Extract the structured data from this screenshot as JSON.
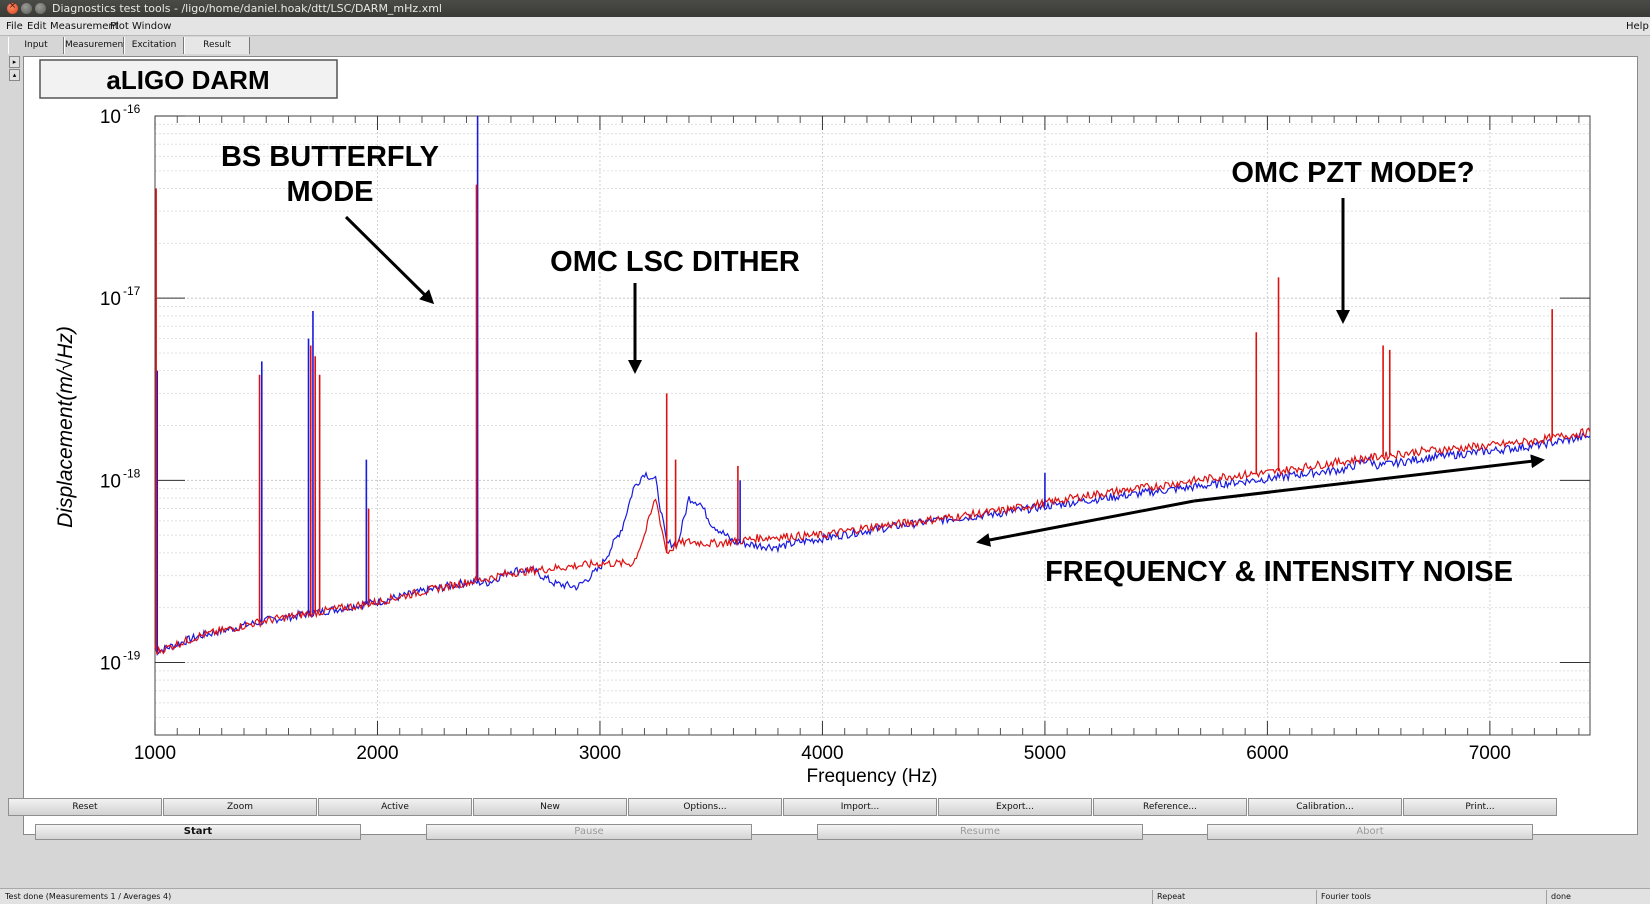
{
  "window": {
    "title": "Diagnostics test tools - /ligo/home/daniel.hoak/dtt/LSC/DARM_mHz.xml"
  },
  "menubar": {
    "items": [
      "File",
      "Edit",
      "Measurement",
      "Plot",
      "Window"
    ],
    "help": "Help"
  },
  "tabs": [
    "Input",
    "Measurement",
    "Excitation",
    "Result"
  ],
  "active_tab": "Result",
  "plot_title_box": "aLIGO DARM",
  "annotations": {
    "bs_butterfly_line1": "BS BUTTERFLY",
    "bs_butterfly_line2": "MODE",
    "omc_lsc_dither": "OMC LSC DITHER",
    "omc_pzt_mode": "OMC PZT MODE?",
    "freq_intensity": "FREQUENCY & INTENSITY NOISE"
  },
  "chart_data": {
    "type": "line",
    "title": "aLIGO DARM",
    "xlabel": "Frequency (Hz)",
    "ylabel": "Displacement(m/√Hz)",
    "xlim": [
      1000,
      7450
    ],
    "ylim": [
      4e-20,
      1e-16
    ],
    "yscale": "log",
    "xticks": [
      "1000",
      "2000",
      "3000",
      "4000",
      "5000",
      "6000",
      "7000"
    ],
    "yticks": [
      {
        "base": "10",
        "exp": "-16"
      },
      {
        "base": "10",
        "exp": "-17"
      },
      {
        "base": "10",
        "exp": "-18"
      },
      {
        "base": "10",
        "exp": "-19"
      }
    ],
    "grid": true,
    "series": [
      {
        "color": "#1a1adf",
        "x": [
          1000,
          1010,
          1200,
          1500,
          1800,
          2000,
          2200,
          2400,
          2500,
          2600,
          2700,
          2800,
          2900,
          3000,
          3100,
          3150,
          3200,
          3250,
          3300,
          3350,
          3400,
          3450,
          3500,
          3600,
          3700,
          3800,
          3900,
          4000,
          4200,
          4500,
          4800,
          5000,
          5200,
          5500,
          5800,
          6000,
          6200,
          6350,
          6450,
          6500,
          6700,
          7000,
          7200,
          7450
        ],
        "y": [
          1.2e-19,
          1.15e-19,
          1.4e-19,
          1.7e-19,
          1.95e-19,
          2.15e-19,
          2.45e-19,
          2.75e-19,
          2.75e-19,
          3.2e-19,
          3.2e-19,
          2.7e-19,
          2.6e-19,
          3.3e-19,
          5.5e-19,
          9e-19,
          1.1e-18,
          1e-18,
          4.5e-19,
          4.5e-19,
          8e-19,
          7.5e-19,
          5.8e-19,
          4.6e-19,
          4.4e-19,
          4.3e-19,
          4.6e-19,
          4.8e-19,
          5.3e-19,
          6e-19,
          6.6e-19,
          7.2e-19,
          7.8e-19,
          8.7e-19,
          9.6e-19,
          1.02e-18,
          1.1e-18,
          1.15e-18,
          1.3e-18,
          1.2e-18,
          1.32e-18,
          1.45e-18,
          1.55e-18,
          1.75e-18
        ]
      },
      {
        "color": "#dd1111",
        "x": [
          1000,
          1010,
          1200,
          1500,
          1800,
          2000,
          2200,
          2400,
          2500,
          2600,
          2800,
          3000,
          3150,
          3200,
          3250,
          3300,
          3350,
          3400,
          3500,
          3600,
          3700,
          3800,
          4000,
          4200,
          4500,
          4800,
          5000,
          5200,
          5500,
          5800,
          6000,
          6200,
          6400,
          6500,
          6700,
          7000,
          7200,
          7450
        ],
        "y": [
          1.2e-19,
          1.15e-19,
          1.4e-19,
          1.7e-19,
          1.95e-19,
          2.15e-19,
          2.45e-19,
          2.75e-19,
          2.9e-19,
          3.1e-19,
          3.3e-19,
          3.5e-19,
          3.5e-19,
          5e-19,
          8e-19,
          4e-19,
          4.5e-19,
          4.6e-19,
          4.5e-19,
          4.6e-19,
          4.8e-19,
          4.9e-19,
          5e-19,
          5.5e-19,
          6.1e-19,
          6.8e-19,
          7.5e-19,
          8.3e-19,
          9.3e-19,
          1.05e-18,
          1.1e-18,
          1.2e-18,
          1.3e-18,
          1.35e-18,
          1.45e-18,
          1.55e-18,
          1.65e-18,
          1.85e-18
        ]
      }
    ],
    "peaks": [
      {
        "color": "#1a1adf",
        "x": 1010,
        "y": 4e-18
      },
      {
        "color": "#1a1adf",
        "x": 1480,
        "y": 4.5e-18
      },
      {
        "color": "#1a1adf",
        "x": 1690,
        "y": 6e-18
      },
      {
        "color": "#1a1adf",
        "x": 1710,
        "y": 8.5e-18
      },
      {
        "color": "#1a1adf",
        "x": 1950,
        "y": 1.3e-18
      },
      {
        "color": "#1a1adf",
        "x": 2450,
        "y": 1e-16
      },
      {
        "color": "#1a1adf",
        "x": 3630,
        "y": 1e-18
      },
      {
        "color": "#1a1adf",
        "x": 5000,
        "y": 1.1e-18
      },
      {
        "color": "#dd1111",
        "x": 1005,
        "y": 4e-17
      },
      {
        "color": "#dd1111",
        "x": 1470,
        "y": 3.8e-18
      },
      {
        "color": "#dd1111",
        "x": 1700,
        "y": 5.5e-18
      },
      {
        "color": "#dd1111",
        "x": 1720,
        "y": 4.8e-18
      },
      {
        "color": "#dd1111",
        "x": 1740,
        "y": 3.8e-18
      },
      {
        "color": "#dd1111",
        "x": 1960,
        "y": 7e-19
      },
      {
        "color": "#dd1111",
        "x": 2445,
        "y": 4.2e-17
      },
      {
        "color": "#dd1111",
        "x": 3300,
        "y": 3e-18
      },
      {
        "color": "#dd1111",
        "x": 3340,
        "y": 1.3e-18
      },
      {
        "color": "#dd1111",
        "x": 3620,
        "y": 1.2e-18
      },
      {
        "color": "#dd1111",
        "x": 5950,
        "y": 6.5e-18
      },
      {
        "color": "#dd1111",
        "x": 6050,
        "y": 1.3e-17
      },
      {
        "color": "#dd1111",
        "x": 6520,
        "y": 5.5e-18
      },
      {
        "color": "#dd1111",
        "x": 6550,
        "y": 5.2e-18
      },
      {
        "color": "#dd1111",
        "x": 7280,
        "y": 8.7e-18
      }
    ]
  },
  "buttons_row1": [
    "Reset",
    "Zoom",
    "Active",
    "New",
    "Options...",
    "Import...",
    "Export...",
    "Reference...",
    "Calibration...",
    "Print..."
  ],
  "buttons_row2": {
    "start": "Start",
    "pause": "Pause",
    "resume": "Resume",
    "abort": "Abort"
  },
  "status": {
    "left": "Test done (Measurements 1 / Averages 4)",
    "repeat": "Repeat",
    "mode": "Fourier tools",
    "state": "done"
  }
}
